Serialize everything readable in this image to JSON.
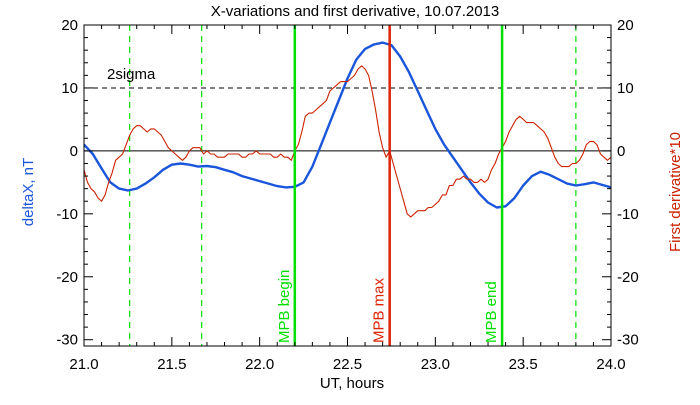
{
  "chart_data": {
    "type": "line",
    "title": "X-variations and first derivative, 10.07.2013",
    "xlabel": "UT, hours",
    "ylabel_left": "deltaX, nT",
    "ylabel_right": "First derivative*10",
    "xlim": [
      21.0,
      24.0
    ],
    "ylim": [
      -31,
      20
    ],
    "xticks": [
      "21.0",
      "21.5",
      "22.0",
      "22.5",
      "23.0",
      "23.5",
      "24.0"
    ],
    "yticks_left": [
      "20",
      "10",
      "0",
      "-10",
      "-20",
      "-30"
    ],
    "yticks_right": [
      "20",
      "10",
      "0",
      "-10",
      "-20",
      "-30"
    ],
    "annotation": "2sigma",
    "sigma_level": 10,
    "colors": {
      "deltaX": "#1a56db",
      "derivative": "#cc2200",
      "green": "#00e000",
      "red": "#dd2200",
      "axis": "#000000"
    },
    "markers": [
      {
        "label": "MPB begin",
        "x": 22.2,
        "color": "#00e000",
        "style": "solid"
      },
      {
        "label": "MPB max",
        "x": 22.74,
        "color": "#dd2200",
        "style": "solid"
      },
      {
        "label": "MPB end",
        "x": 23.38,
        "color": "#00e000",
        "style": "solid"
      }
    ],
    "dashed_markers": [
      21.26,
      21.67,
      23.8
    ],
    "series": [
      {
        "key": "deltaX",
        "color": "#1a56db",
        "x": [
          21.0,
          21.05,
          21.1,
          21.15,
          21.2,
          21.25,
          21.3,
          21.35,
          21.4,
          21.45,
          21.5,
          21.55,
          21.6,
          21.65,
          21.7,
          21.75,
          21.8,
          21.85,
          21.9,
          21.95,
          22.0,
          22.05,
          22.1,
          22.15,
          22.2,
          22.25,
          22.3,
          22.35,
          22.4,
          22.45,
          22.5,
          22.55,
          22.6,
          22.65,
          22.7,
          22.75,
          22.8,
          22.85,
          22.9,
          22.95,
          23.0,
          23.05,
          23.1,
          23.15,
          23.2,
          23.25,
          23.3,
          23.35,
          23.4,
          23.45,
          23.5,
          23.55,
          23.6,
          23.65,
          23.7,
          23.75,
          23.8,
          23.85,
          23.9,
          23.95,
          24.0
        ],
        "values": [
          1.0,
          -0.5,
          -2.8,
          -5.0,
          -6.0,
          -6.3,
          -6.0,
          -5.2,
          -4.2,
          -3.0,
          -2.2,
          -2.0,
          -2.2,
          -2.5,
          -2.4,
          -2.6,
          -3.0,
          -3.4,
          -4.0,
          -4.4,
          -4.8,
          -5.2,
          -5.6,
          -5.8,
          -5.7,
          -5.0,
          -2.5,
          1.0,
          4.5,
          8.0,
          11.5,
          14.5,
          16.2,
          16.9,
          17.2,
          16.8,
          15.0,
          12.5,
          9.5,
          6.5,
          3.5,
          1.0,
          -1.0,
          -3.0,
          -5.0,
          -6.8,
          -8.2,
          -9.0,
          -8.8,
          -7.5,
          -5.5,
          -4.0,
          -3.3,
          -3.8,
          -4.5,
          -5.2,
          -5.5,
          -5.3,
          -5.0,
          -5.4,
          -5.8
        ]
      },
      {
        "key": "derivative",
        "color": "#cc2200",
        "x": [
          21.0,
          21.02,
          21.04,
          21.06,
          21.08,
          21.1,
          21.12,
          21.14,
          21.16,
          21.18,
          21.2,
          21.22,
          21.24,
          21.26,
          21.28,
          21.3,
          21.32,
          21.34,
          21.36,
          21.38,
          21.4,
          21.42,
          21.44,
          21.46,
          21.48,
          21.5,
          21.52,
          21.54,
          21.56,
          21.58,
          21.6,
          21.62,
          21.64,
          21.66,
          21.68,
          21.7,
          21.72,
          21.74,
          21.76,
          21.78,
          21.8,
          21.82,
          21.84,
          21.86,
          21.88,
          21.9,
          21.92,
          21.94,
          21.96,
          21.98,
          22.0,
          22.02,
          22.04,
          22.06,
          22.08,
          22.1,
          22.12,
          22.14,
          22.16,
          22.18,
          22.2,
          22.22,
          22.24,
          22.26,
          22.28,
          22.3,
          22.32,
          22.34,
          22.36,
          22.38,
          22.4,
          22.42,
          22.44,
          22.46,
          22.48,
          22.5,
          22.52,
          22.54,
          22.56,
          22.58,
          22.6,
          22.62,
          22.64,
          22.66,
          22.68,
          22.7,
          22.72,
          22.74,
          22.76,
          22.78,
          22.8,
          22.82,
          22.84,
          22.86,
          22.88,
          22.9,
          22.92,
          22.94,
          22.96,
          22.98,
          23.0,
          23.02,
          23.04,
          23.06,
          23.08,
          23.1,
          23.12,
          23.14,
          23.16,
          23.18,
          23.2,
          23.22,
          23.24,
          23.26,
          23.28,
          23.3,
          23.32,
          23.34,
          23.36,
          23.38,
          23.4,
          23.42,
          23.44,
          23.46,
          23.48,
          23.5,
          23.52,
          23.54,
          23.56,
          23.58,
          23.6,
          23.62,
          23.64,
          23.66,
          23.68,
          23.7,
          23.72,
          23.74,
          23.76,
          23.78,
          23.8,
          23.82,
          23.84,
          23.86,
          23.88,
          23.9,
          23.92,
          23.94,
          23.96,
          23.98,
          24.0
        ],
        "values": [
          -3.0,
          -5.0,
          -6.0,
          -6.5,
          -7.5,
          -8.0,
          -7.0,
          -5.0,
          -3.5,
          -1.5,
          -1.0,
          -0.5,
          1.0,
          2.5,
          3.5,
          4.0,
          4.0,
          3.5,
          3.0,
          3.5,
          3.5,
          3.0,
          2.5,
          1.5,
          0.5,
          0.0,
          -0.5,
          -1.0,
          -1.5,
          -1.0,
          0.0,
          0.5,
          0.5,
          0.5,
          -0.5,
          0.0,
          -0.5,
          -0.5,
          -1.0,
          -1.0,
          -1.0,
          -0.5,
          -0.5,
          -0.5,
          -0.5,
          -1.0,
          -1.0,
          -0.5,
          -0.5,
          0.0,
          -0.5,
          -0.5,
          -0.5,
          -0.5,
          -1.0,
          -1.0,
          -0.5,
          -1.0,
          -1.0,
          -1.5,
          0.0,
          1.0,
          3.0,
          5.5,
          6.0,
          6.0,
          6.5,
          7.0,
          7.5,
          8.0,
          9.5,
          10.0,
          10.5,
          11.0,
          11.0,
          11.0,
          11.5,
          12.0,
          13.0,
          13.5,
          13.0,
          12.0,
          9.5,
          6.5,
          3.0,
          0.5,
          -1.0,
          0.0,
          -2.0,
          -4.0,
          -6.0,
          -8.0,
          -10.0,
          -10.5,
          -10.0,
          -9.5,
          -9.5,
          -9.5,
          -9.0,
          -9.0,
          -8.5,
          -8.0,
          -7.0,
          -7.0,
          -5.5,
          -5.5,
          -4.5,
          -4.5,
          -4.0,
          -4.5,
          -4.5,
          -5.0,
          -5.0,
          -4.5,
          -5.0,
          -4.5,
          -3.0,
          -2.0,
          -0.5,
          0.5,
          1.5,
          3.0,
          4.0,
          5.0,
          5.5,
          5.0,
          4.5,
          4.5,
          4.5,
          4.0,
          3.5,
          3.0,
          2.0,
          0.5,
          -1.0,
          -2.0,
          -2.5,
          -2.5,
          -2.5,
          -2.0,
          -2.0,
          -1.5,
          -0.5,
          1.0,
          1.5,
          1.5,
          1.0,
          -0.5,
          -1.0,
          -1.5,
          -1.0
        ]
      }
    ]
  }
}
